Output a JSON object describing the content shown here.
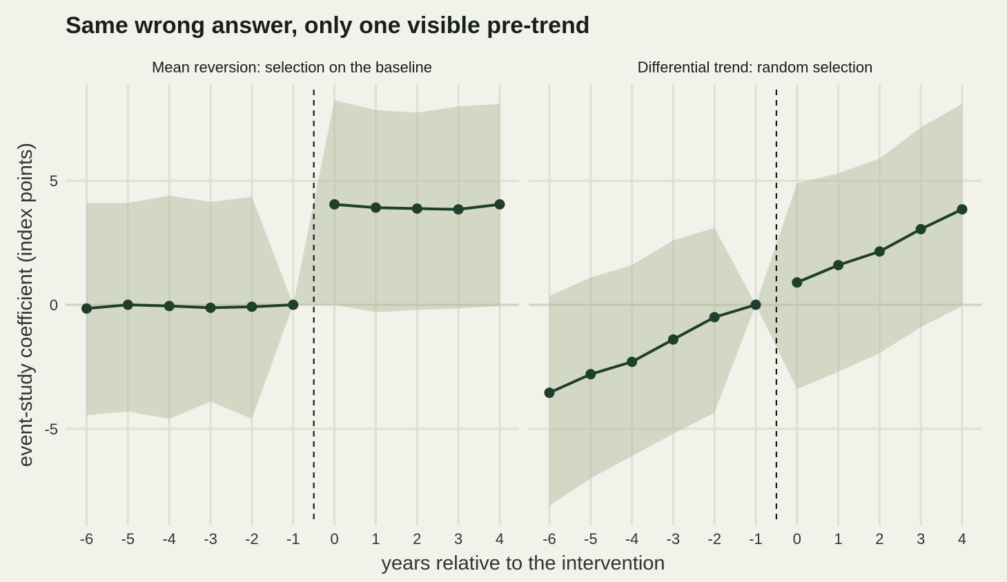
{
  "chart_data": {
    "type": "line",
    "title": "Same wrong answer, only one visible pre-trend",
    "xlabel": "years relative to the intervention",
    "ylabel": "event-study coefficient (index points)",
    "ylim": [
      -8.9,
      8.9
    ],
    "yticks": [
      -5,
      0,
      5
    ],
    "ytick_labels": [
      "-5",
      "0",
      "5"
    ],
    "xticks": [
      -6,
      -5,
      -4,
      -3,
      -2,
      -1,
      0,
      1,
      2,
      3,
      4
    ],
    "xtick_labels": [
      "-6",
      "-5",
      "-4",
      "-3",
      "-2",
      "-1",
      "0",
      "1",
      "2",
      "3",
      "4"
    ],
    "treatment_cutoff": -0.5,
    "grid": true,
    "legend": "none",
    "colors": {
      "line": "#1e3f2b",
      "band": "#b3bd9f",
      "background": "#f2f1ea"
    },
    "panels": [
      {
        "title": "Mean reversion: selection on the baseline",
        "x": [
          -6,
          -5,
          -4,
          -3,
          -2,
          -1,
          0,
          1,
          2,
          3,
          4
        ],
        "y": [
          -0.15,
          0.0,
          -0.05,
          -0.12,
          -0.08,
          0.0,
          4.05,
          3.92,
          3.88,
          3.85,
          4.05
        ],
        "lower": [
          -4.45,
          -4.3,
          -4.6,
          -3.9,
          -4.6,
          0.0,
          0.0,
          -0.3,
          -0.2,
          -0.15,
          -0.05
        ],
        "upper": [
          4.1,
          4.1,
          4.4,
          4.15,
          4.35,
          0.0,
          8.25,
          7.85,
          7.75,
          8.0,
          8.1
        ]
      },
      {
        "title": "Differential trend: random selection",
        "x": [
          -6,
          -5,
          -4,
          -3,
          -2,
          -1,
          0,
          1,
          2,
          3,
          4
        ],
        "y": [
          -3.55,
          -2.8,
          -2.3,
          -1.4,
          -0.5,
          0.0,
          0.9,
          1.6,
          2.15,
          3.05,
          3.85
        ],
        "lower": [
          -8.1,
          -7.0,
          -6.1,
          -5.2,
          -4.35,
          0.0,
          -3.4,
          -2.7,
          -1.95,
          -0.9,
          -0.05
        ],
        "upper": [
          0.35,
          1.1,
          1.6,
          2.6,
          3.1,
          0.0,
          4.9,
          5.3,
          5.9,
          7.15,
          8.1
        ]
      }
    ]
  }
}
